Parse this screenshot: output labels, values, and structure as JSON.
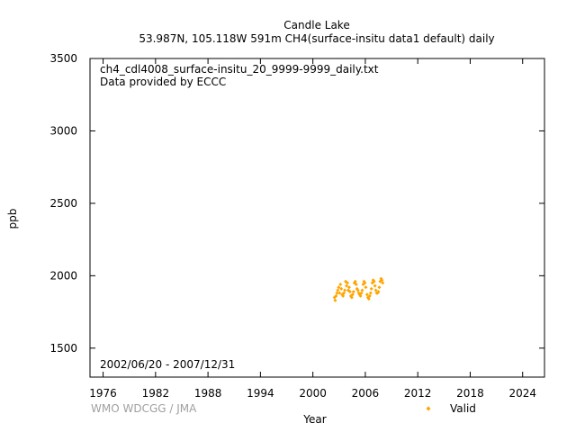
{
  "chart_data": {
    "type": "scatter",
    "title": "Candle Lake",
    "subtitle": "53.987N, 105.118W 591m    CH4(surface-insitu data1 default) daily",
    "xlabel": "Year",
    "ylabel": "ppb",
    "xlim": [
      1974.5,
      2026.5
    ],
    "ylim": [
      1300,
      3500
    ],
    "x_ticks": [
      1976,
      1982,
      1988,
      1994,
      2000,
      2006,
      2012,
      2018,
      2024
    ],
    "y_ticks": [
      1500,
      2000,
      2500,
      3000,
      3500
    ],
    "file_label": "ch4_cdl4008_surface-insitu_20_9999-9999_daily.txt",
    "provider_label": "Data provided by ECCC",
    "period_label": "2002/06/20 - 2007/12/31",
    "credit": "WMO WDCGG / JMA",
    "legend_position": "bottom",
    "grid": false,
    "series": [
      {
        "name": "Valid",
        "color": "#ffa500",
        "marker": "diamond",
        "x": [
          2002.47,
          2002.55,
          2002.65,
          2002.75,
          2002.85,
          2002.95,
          2003.05,
          2003.15,
          2003.25,
          2003.35,
          2003.45,
          2003.55,
          2003.65,
          2003.75,
          2003.85,
          2003.95,
          2004.05,
          2004.15,
          2004.25,
          2004.35,
          2004.45,
          2004.55,
          2004.65,
          2004.75,
          2004.85,
          2004.95,
          2005.05,
          2005.15,
          2005.25,
          2005.35,
          2005.45,
          2005.55,
          2005.65,
          2005.75,
          2005.85,
          2005.95,
          2006.05,
          2006.2,
          2006.3,
          2006.4,
          2006.5,
          2006.6,
          2006.7,
          2006.8,
          2006.9,
          2007.0,
          2007.1,
          2007.2,
          2007.3,
          2007.4,
          2007.5,
          2007.6,
          2007.7,
          2007.8,
          2007.9,
          2007.99
        ],
        "y": [
          1850,
          1830,
          1860,
          1880,
          1900,
          1920,
          1880,
          1940,
          1910,
          1870,
          1860,
          1880,
          1900,
          1960,
          1930,
          1950,
          1900,
          1920,
          1890,
          1860,
          1850,
          1870,
          1890,
          1950,
          1960,
          1940,
          1910,
          1900,
          1880,
          1870,
          1860,
          1880,
          1900,
          1940,
          1960,
          1950,
          1920,
          1870,
          1850,
          1840,
          1860,
          1880,
          1910,
          1950,
          1970,
          1960,
          1930,
          1900,
          1880,
          1880,
          1890,
          1920,
          1960,
          1980,
          1970,
          1950
        ]
      }
    ]
  }
}
